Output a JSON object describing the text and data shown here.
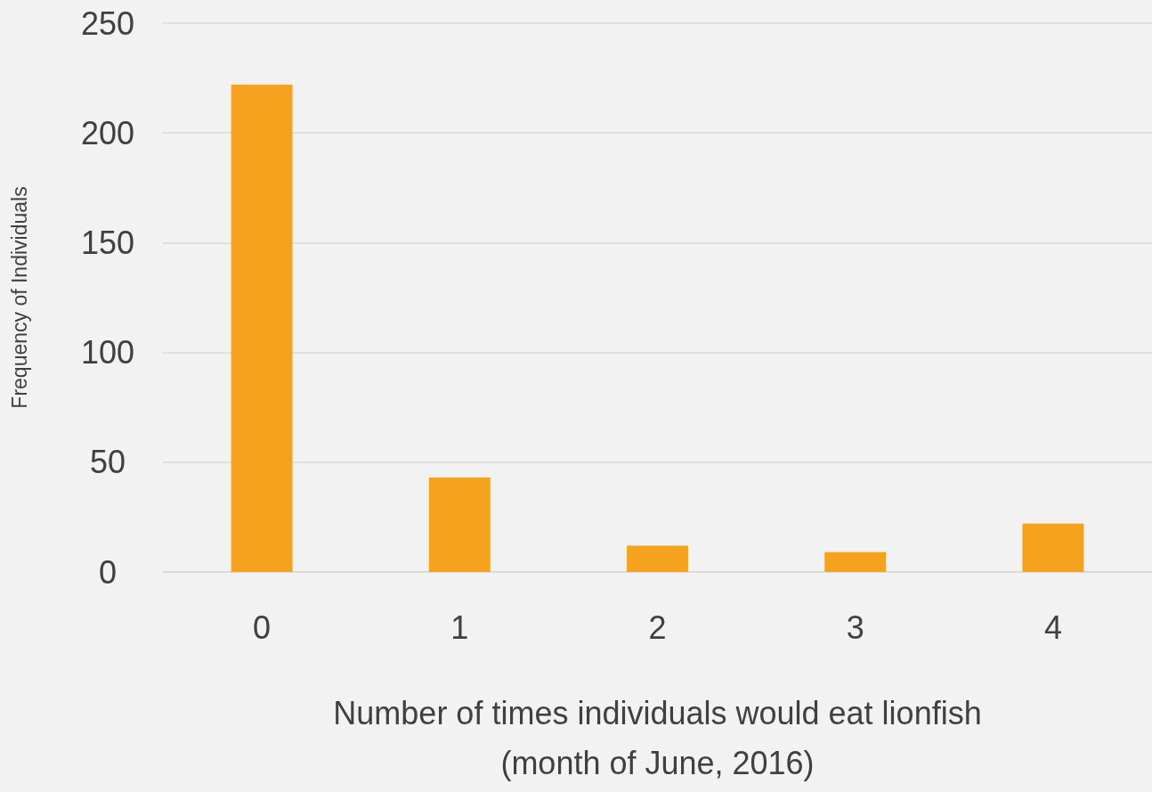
{
  "chart_data": {
    "type": "bar",
    "xlabel": "Number of times individuals would eat lionfish\n(month of June, 2016)",
    "ylabel": "Frequency of Individuals",
    "categories": [
      "0",
      "1",
      "2",
      "3",
      "4"
    ],
    "values": [
      222,
      43,
      12,
      9,
      22
    ],
    "color": "#f5a31f",
    "ylim": [
      0,
      250
    ],
    "yticks": [
      0,
      50,
      100,
      150,
      200,
      250
    ],
    "grid": "y"
  }
}
